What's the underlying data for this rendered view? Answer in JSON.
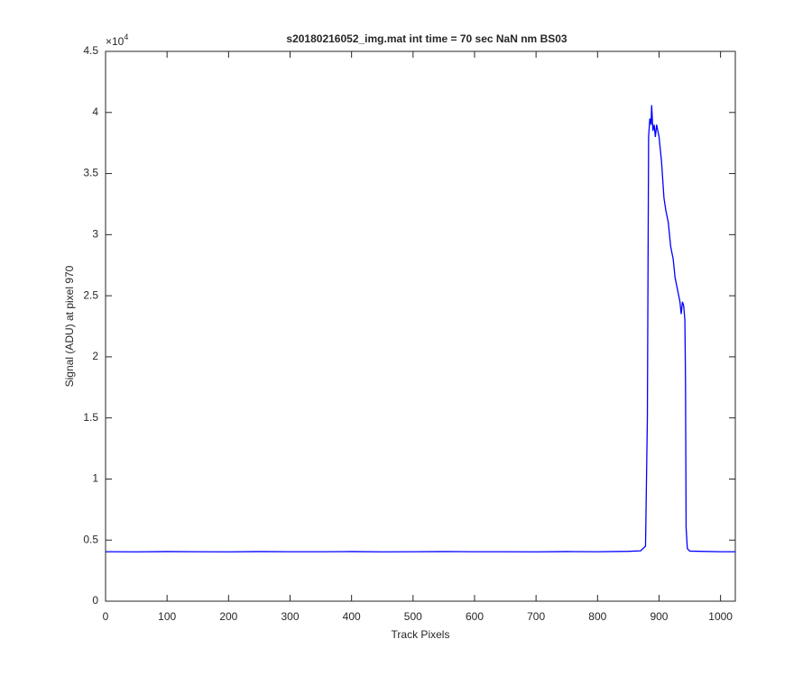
{
  "chart_data": {
    "type": "line",
    "title": "s20180216052_img.mat int time = 70 sec  NaN nm BS03",
    "x_label": "Track Pixels",
    "y_label": "Signal (ADU) at pixel 970",
    "y_multiplier_base": "×10",
    "y_multiplier_exponent": "4",
    "xlim": [
      0,
      1024
    ],
    "xticks": [
      0,
      100,
      200,
      300,
      400,
      500,
      600,
      700,
      800,
      900,
      1000
    ],
    "ylim": [
      0,
      4.5
    ],
    "yticks": [
      0,
      0.5,
      1,
      1.5,
      2,
      2.5,
      3,
      3.5,
      4,
      4.5
    ],
    "grid": false,
    "series": [
      {
        "color": "#0000ff",
        "x": [
          0,
          50,
          100,
          150,
          200,
          250,
          300,
          350,
          400,
          450,
          500,
          550,
          600,
          650,
          700,
          750,
          800,
          850,
          870,
          878,
          881,
          883,
          885,
          887,
          888,
          890,
          892,
          894,
          896,
          900,
          904,
          908,
          911,
          915,
          919,
          923,
          926,
          930,
          934,
          936,
          938,
          940,
          942,
          943,
          944,
          946,
          950,
          1000,
          1024
        ],
        "values": [
          0.405,
          0.404,
          0.406,
          0.405,
          0.404,
          0.406,
          0.405,
          0.405,
          0.406,
          0.404,
          0.405,
          0.406,
          0.405,
          0.405,
          0.404,
          0.406,
          0.405,
          0.408,
          0.412,
          0.45,
          1.5,
          3.8,
          3.95,
          3.9,
          4.06,
          3.85,
          3.9,
          3.8,
          3.9,
          3.8,
          3.6,
          3.3,
          3.2,
          3.1,
          2.9,
          2.8,
          2.65,
          2.55,
          2.45,
          2.35,
          2.45,
          2.42,
          2.3,
          1.8,
          0.6,
          0.43,
          0.41,
          0.405,
          0.405
        ]
      }
    ]
  }
}
